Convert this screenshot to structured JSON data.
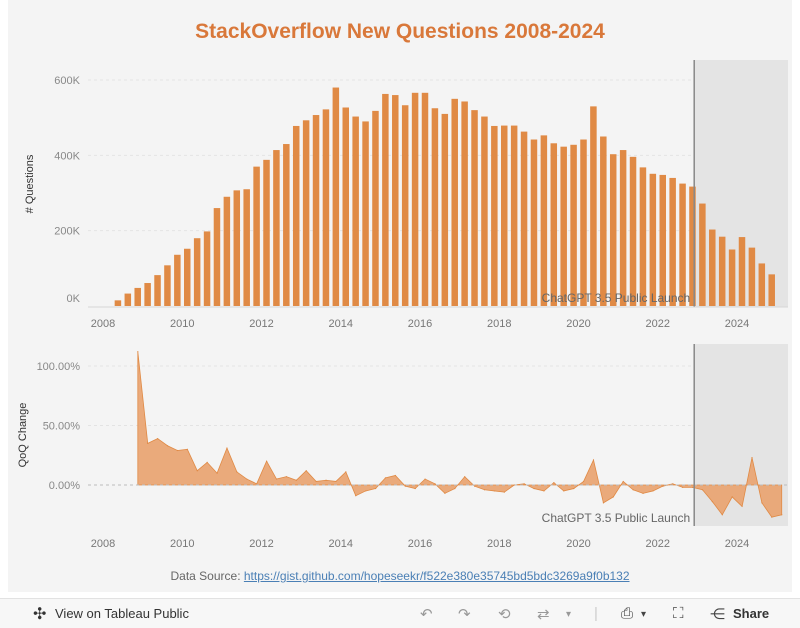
{
  "title": "StackOverflow New Questions 2008-2024",
  "source": {
    "label": "Data Source:",
    "url": "https://gist.github.com/hopeseekr/f522e380e35745bd5bdc3269a9f0b132"
  },
  "toolbar": {
    "view_label": "View on Tableau Public",
    "share_label": "Share"
  },
  "colors": {
    "accent": "#d9783a",
    "bar": "#e08a45",
    "area": "#e9a26e",
    "shade": "#e4e4e4"
  },
  "chart_data": [
    {
      "type": "bar",
      "ylabel": "# Questions",
      "ylim": [
        0,
        650000
      ],
      "yticks": [
        0,
        200000,
        400000,
        600000
      ],
      "ytick_labels": [
        "0K",
        "200K",
        "400K",
        "600K"
      ],
      "xlim": [
        2008,
        2025
      ],
      "xticks": [
        2008,
        2010,
        2012,
        2014,
        2016,
        2018,
        2020,
        2022,
        2024
      ],
      "annotation": "ChatGPT 3.5 Public Launch",
      "launch_x": 2022.92,
      "x": [
        2008.25,
        2008.5,
        2008.75,
        2009,
        2009.25,
        2009.5,
        2009.75,
        2010,
        2010.25,
        2010.5,
        2010.75,
        2011,
        2011.25,
        2011.5,
        2011.75,
        2012,
        2012.25,
        2012.5,
        2012.75,
        2013,
        2013.25,
        2013.5,
        2013.75,
        2014,
        2014.25,
        2014.5,
        2014.75,
        2015,
        2015.25,
        2015.5,
        2015.75,
        2016,
        2016.25,
        2016.5,
        2016.75,
        2017,
        2017.25,
        2017.5,
        2017.75,
        2018,
        2018.25,
        2018.5,
        2018.75,
        2019,
        2019.25,
        2019.5,
        2019.75,
        2020,
        2020.25,
        2020.5,
        2020.75,
        2021,
        2021.25,
        2021.5,
        2021.75,
        2022,
        2022.25,
        2022.5,
        2022.75,
        2023,
        2023.25,
        2023.5,
        2023.75,
        2024,
        2024.25,
        2024.5,
        2024.75
      ],
      "values": [
        15000,
        33000,
        48000,
        61000,
        82000,
        108000,
        136000,
        152000,
        180000,
        198000,
        260000,
        290000,
        307000,
        310000,
        370000,
        388000,
        414000,
        430000,
        478000,
        493000,
        507000,
        522000,
        580000,
        527000,
        503000,
        490000,
        518000,
        563000,
        560000,
        533000,
        566000,
        566000,
        525000,
        510000,
        550000,
        543000,
        520000,
        503000,
        478000,
        479000,
        479000,
        463000,
        442000,
        453000,
        432000,
        423000,
        428000,
        442000,
        530000,
        450000,
        403000,
        414000,
        396000,
        368000,
        351000,
        348000,
        340000,
        325000,
        317000,
        272000,
        203000,
        184000,
        150000,
        183000,
        155000,
        113000,
        84000
      ]
    },
    {
      "type": "area",
      "ylabel": "QoQ Change",
      "ylim": [
        -0.4,
        1.2
      ],
      "yticks": [
        0,
        0.5,
        1.0
      ],
      "ytick_labels": [
        "0.00%",
        "50.00%",
        "100.00%"
      ],
      "xlim": [
        2008,
        2025
      ],
      "xticks": [
        2008,
        2010,
        2012,
        2014,
        2016,
        2018,
        2020,
        2022,
        2024
      ],
      "annotation": "ChatGPT 3.5 Public Launch",
      "launch_x": 2022.92,
      "x": [
        2008.5,
        2008.75,
        2009,
        2009.25,
        2009.5,
        2009.75,
        2010,
        2010.25,
        2010.5,
        2010.75,
        2011,
        2011.25,
        2011.5,
        2011.75,
        2012,
        2012.25,
        2012.5,
        2012.75,
        2013,
        2013.25,
        2013.5,
        2013.75,
        2014,
        2014.25,
        2014.5,
        2014.75,
        2015,
        2015.25,
        2015.5,
        2015.75,
        2016,
        2016.25,
        2016.5,
        2016.75,
        2017,
        2017.25,
        2017.5,
        2017.75,
        2018,
        2018.25,
        2018.5,
        2018.75,
        2019,
        2019.25,
        2019.5,
        2019.75,
        2020,
        2020.25,
        2020.5,
        2020.75,
        2021,
        2021.25,
        2021.5,
        2021.75,
        2022,
        2022.25,
        2022.5,
        2022.75,
        2023,
        2023.25,
        2023.5,
        2023.75,
        2024,
        2024.25,
        2024.5,
        2024.75
      ],
      "values": [
        1.12,
        0.35,
        0.39,
        0.33,
        0.29,
        0.3,
        0.12,
        0.19,
        0.1,
        0.31,
        0.11,
        0.05,
        0.01,
        0.2,
        0.05,
        0.07,
        0.04,
        0.12,
        0.03,
        0.04,
        0.03,
        0.11,
        -0.09,
        -0.05,
        -0.03,
        0.06,
        0.08,
        -0.01,
        -0.03,
        0.05,
        0.01,
        -0.07,
        -0.03,
        0.07,
        -0.01,
        -0.04,
        -0.05,
        -0.06,
        0.0,
        0.01,
        -0.03,
        -0.05,
        0.02,
        -0.05,
        -0.03,
        0.03,
        0.21,
        -0.15,
        -0.1,
        0.03,
        -0.04,
        -0.07,
        -0.05,
        -0.01,
        0.01,
        -0.02,
        -0.02,
        -0.04,
        -0.14,
        -0.25,
        -0.1,
        -0.18,
        0.23,
        -0.15,
        -0.27,
        -0.25
      ]
    }
  ]
}
